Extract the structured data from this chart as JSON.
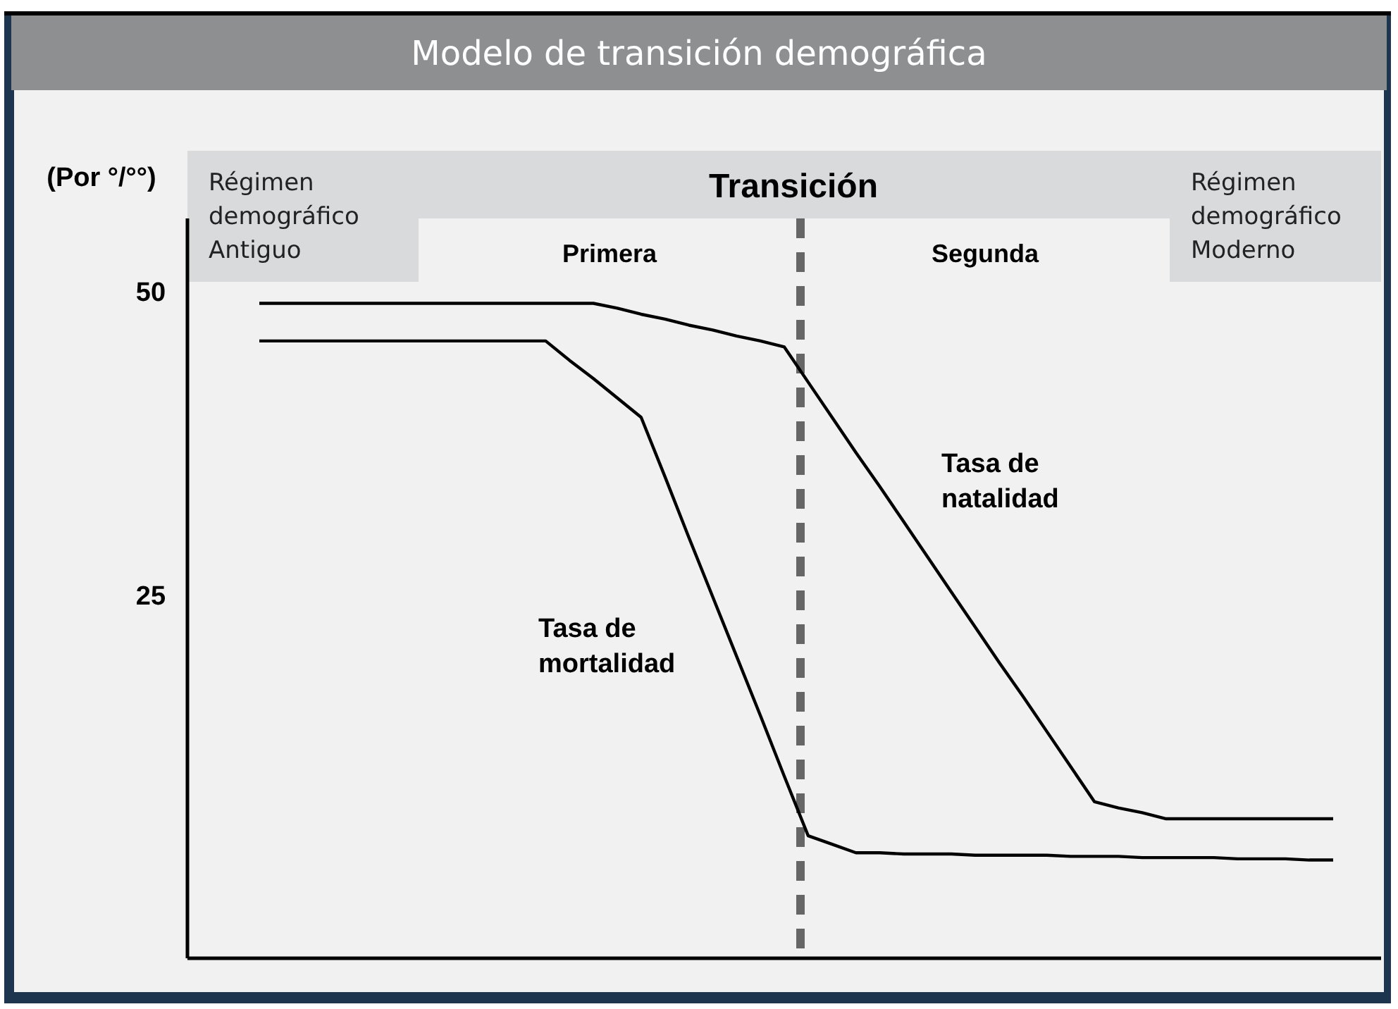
{
  "chart_data": {
    "type": "line",
    "title": "Modelo de transición demográfica",
    "ylabel": "(Por °/°°)",
    "categories": [
      null,
      null,
      null,
      null,
      null,
      null,
      null,
      null,
      null,
      null,
      null,
      null,
      null,
      null,
      null,
      null,
      null,
      null,
      null,
      null,
      null,
      null,
      null,
      null,
      null,
      null,
      null,
      null,
      null,
      null,
      null,
      null,
      null,
      null,
      null,
      null,
      null,
      null,
      null,
      null,
      null,
      null,
      null,
      null,
      null,
      null
    ],
    "ylim": [
      -5,
      56
    ],
    "yticks": [
      25,
      50
    ],
    "tick_labels": "y",
    "marker": "none",
    "line_style": "solid",
    "series": [
      {
        "name": "Tasa de natalidad",
        "color": "#000000",
        "values": [
          49,
          49,
          49,
          49,
          49,
          49,
          49,
          49,
          49,
          49,
          49,
          49,
          49,
          49,
          49,
          48.6,
          48.1,
          47.7,
          47.2,
          46.8,
          46.3,
          45.9,
          45.4,
          42.5,
          39.6,
          36.7,
          33.9,
          31.0,
          28.1,
          25.2,
          22.3,
          19.4,
          16.6,
          13.7,
          10.8,
          7.9,
          7.4,
          7.0,
          6.5,
          6.5,
          6.5,
          6.5,
          6.5,
          6.5,
          6.5,
          6.5
        ]
      },
      {
        "name": "Tasa de mortalidad",
        "color": "#000000",
        "values": [
          45.9,
          45.9,
          45.9,
          45.9,
          45.9,
          45.9,
          45.9,
          45.9,
          45.9,
          45.9,
          45.9,
          45.9,
          45.9,
          44.3,
          42.8,
          41.2,
          39.6,
          34.7,
          29.7,
          24.8,
          19.9,
          15.0,
          10.0,
          5.1,
          4.4,
          3.7,
          3.7,
          3.6,
          3.6,
          3.6,
          3.5,
          3.5,
          3.5,
          3.5,
          3.4,
          3.4,
          3.4,
          3.3,
          3.3,
          3.3,
          3.3,
          3.2,
          3.2,
          3.2,
          3.1,
          3.1
        ]
      }
    ],
    "annotations": [
      "Régimen demográfico Antiguo",
      "Transición",
      "Primera",
      "Segunda",
      "Régimen demográfico Moderno"
    ]
  }
}
